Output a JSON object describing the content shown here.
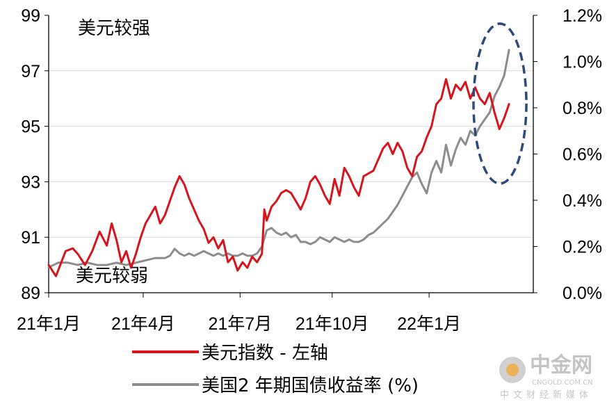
{
  "chart_data": {
    "type": "line",
    "x": [
      "21年1月",
      "21年4月",
      "21年7月",
      "21年10月",
      "22年1月"
    ],
    "y_left": {
      "ticks": [
        "89",
        "91",
        "93",
        "95",
        "97",
        "99"
      ],
      "ylim": [
        89,
        99
      ]
    },
    "y_right": {
      "ticks": [
        "0.0%",
        "0.2%",
        "0.4%",
        "0.6%",
        "0.8%",
        "1.0%",
        "1.2%"
      ],
      "ylim": [
        0,
        1.2
      ]
    },
    "annotations": {
      "top": "美元较强",
      "bottom": "美元较弱"
    },
    "grid": true,
    "legend_position": "bottom",
    "series": [
      {
        "name": "美元指数 - 左轴",
        "axis": "left",
        "color": "#d7141c",
        "points": [
          [
            0,
            90.0
          ],
          [
            3,
            89.6
          ],
          [
            7,
            90.5
          ],
          [
            10,
            90.6
          ],
          [
            12,
            90.4
          ],
          [
            15,
            90.0
          ],
          [
            18,
            90.5
          ],
          [
            21,
            91.2
          ],
          [
            24,
            90.7
          ],
          [
            26,
            91.5
          ],
          [
            28,
            90.9
          ],
          [
            30,
            90.1
          ],
          [
            32,
            90.5
          ],
          [
            34,
            89.9
          ],
          [
            36,
            90.4
          ],
          [
            38,
            91.0
          ],
          [
            40,
            91.5
          ],
          [
            42,
            91.8
          ],
          [
            44,
            92.1
          ],
          [
            46,
            91.5
          ],
          [
            48,
            91.8
          ],
          [
            50,
            92.3
          ],
          [
            52,
            92.8
          ],
          [
            54,
            93.2
          ],
          [
            56,
            92.9
          ],
          [
            58,
            92.4
          ],
          [
            60,
            92.0
          ],
          [
            62,
            91.6
          ],
          [
            64,
            91.3
          ],
          [
            66,
            90.8
          ],
          [
            68,
            91.0
          ],
          [
            70,
            90.6
          ],
          [
            72,
            90.9
          ],
          [
            74,
            90.1
          ],
          [
            76,
            90.3
          ],
          [
            78,
            89.8
          ],
          [
            80,
            90.1
          ],
          [
            82,
            89.9
          ],
          [
            84,
            90.3
          ],
          [
            86,
            90.1
          ],
          [
            88,
            90.4
          ],
          [
            89,
            92.0
          ],
          [
            90,
            91.6
          ],
          [
            92,
            92.1
          ],
          [
            94,
            92.3
          ],
          [
            96,
            92.6
          ],
          [
            98,
            92.7
          ],
          [
            100,
            92.6
          ],
          [
            102,
            92.3
          ],
          [
            104,
            92.0
          ],
          [
            106,
            92.4
          ],
          [
            108,
            93.0
          ],
          [
            110,
            93.2
          ],
          [
            112,
            92.9
          ],
          [
            114,
            92.5
          ],
          [
            116,
            92.2
          ],
          [
            118,
            93.1
          ],
          [
            120,
            92.5
          ],
          [
            122,
            93.5
          ],
          [
            124,
            93.2
          ],
          [
            126,
            92.8
          ],
          [
            128,
            92.5
          ],
          [
            130,
            93.2
          ],
          [
            132,
            93.3
          ],
          [
            134,
            93.4
          ],
          [
            136,
            93.8
          ],
          [
            138,
            94.2
          ],
          [
            140,
            94.4
          ],
          [
            142,
            94.0
          ],
          [
            144,
            94.4
          ],
          [
            146,
            94.1
          ],
          [
            148,
            93.5
          ],
          [
            150,
            93.2
          ],
          [
            152,
            93.9
          ],
          [
            154,
            94.1
          ],
          [
            156,
            94.6
          ],
          [
            158,
            95.0
          ],
          [
            160,
            95.8
          ],
          [
            162,
            96.0
          ],
          [
            164,
            96.7
          ],
          [
            166,
            96.0
          ],
          [
            168,
            96.5
          ],
          [
            170,
            96.3
          ],
          [
            172,
            96.6
          ],
          [
            174,
            96.0
          ],
          [
            176,
            96.4
          ],
          [
            178,
            96.0
          ],
          [
            180,
            95.8
          ],
          [
            182,
            96.2
          ],
          [
            184,
            95.5
          ],
          [
            186,
            94.9
          ],
          [
            188,
            95.3
          ],
          [
            190,
            95.8
          ]
        ]
      },
      {
        "name": "美国2 年期国债收益率 (%)",
        "axis": "right",
        "color": "#8c8c8c",
        "points": [
          [
            0,
            0.11
          ],
          [
            4,
            0.13
          ],
          [
            8,
            0.13
          ],
          [
            12,
            0.12
          ],
          [
            16,
            0.13
          ],
          [
            20,
            0.12
          ],
          [
            24,
            0.12
          ],
          [
            28,
            0.13
          ],
          [
            32,
            0.12
          ],
          [
            36,
            0.13
          ],
          [
            40,
            0.14
          ],
          [
            44,
            0.15
          ],
          [
            48,
            0.15
          ],
          [
            50,
            0.16
          ],
          [
            52,
            0.19
          ],
          [
            54,
            0.17
          ],
          [
            56,
            0.16
          ],
          [
            58,
            0.17
          ],
          [
            60,
            0.16
          ],
          [
            62,
            0.17
          ],
          [
            64,
            0.18
          ],
          [
            66,
            0.17
          ],
          [
            68,
            0.16
          ],
          [
            70,
            0.17
          ],
          [
            72,
            0.16
          ],
          [
            74,
            0.17
          ],
          [
            76,
            0.16
          ],
          [
            78,
            0.16
          ],
          [
            80,
            0.17
          ],
          [
            82,
            0.16
          ],
          [
            84,
            0.16
          ],
          [
            86,
            0.17
          ],
          [
            88,
            0.2
          ],
          [
            90,
            0.27
          ],
          [
            92,
            0.28
          ],
          [
            94,
            0.26
          ],
          [
            96,
            0.25
          ],
          [
            98,
            0.26
          ],
          [
            100,
            0.24
          ],
          [
            102,
            0.25
          ],
          [
            104,
            0.22
          ],
          [
            106,
            0.22
          ],
          [
            108,
            0.21
          ],
          [
            110,
            0.22
          ],
          [
            112,
            0.24
          ],
          [
            114,
            0.23
          ],
          [
            116,
            0.22
          ],
          [
            118,
            0.24
          ],
          [
            120,
            0.23
          ],
          [
            122,
            0.22
          ],
          [
            124,
            0.23
          ],
          [
            126,
            0.22
          ],
          [
            128,
            0.22
          ],
          [
            130,
            0.23
          ],
          [
            132,
            0.25
          ],
          [
            134,
            0.26
          ],
          [
            136,
            0.28
          ],
          [
            138,
            0.3
          ],
          [
            140,
            0.32
          ],
          [
            142,
            0.35
          ],
          [
            144,
            0.38
          ],
          [
            146,
            0.42
          ],
          [
            148,
            0.46
          ],
          [
            150,
            0.5
          ],
          [
            152,
            0.52
          ],
          [
            154,
            0.47
          ],
          [
            156,
            0.43
          ],
          [
            158,
            0.52
          ],
          [
            160,
            0.57
          ],
          [
            162,
            0.52
          ],
          [
            164,
            0.64
          ],
          [
            166,
            0.55
          ],
          [
            168,
            0.62
          ],
          [
            170,
            0.67
          ],
          [
            172,
            0.64
          ],
          [
            174,
            0.7
          ],
          [
            176,
            0.68
          ],
          [
            178,
            0.72
          ],
          [
            180,
            0.75
          ],
          [
            182,
            0.78
          ],
          [
            184,
            0.85
          ],
          [
            186,
            0.89
          ],
          [
            188,
            0.94
          ],
          [
            190,
            1.05
          ]
        ]
      }
    ]
  },
  "ellipse_color": "#2e4a7a",
  "watermark": {
    "brand": "中金网",
    "url": "CNGOLD.COM.CN",
    "tagline": "中文财经新媒体"
  }
}
